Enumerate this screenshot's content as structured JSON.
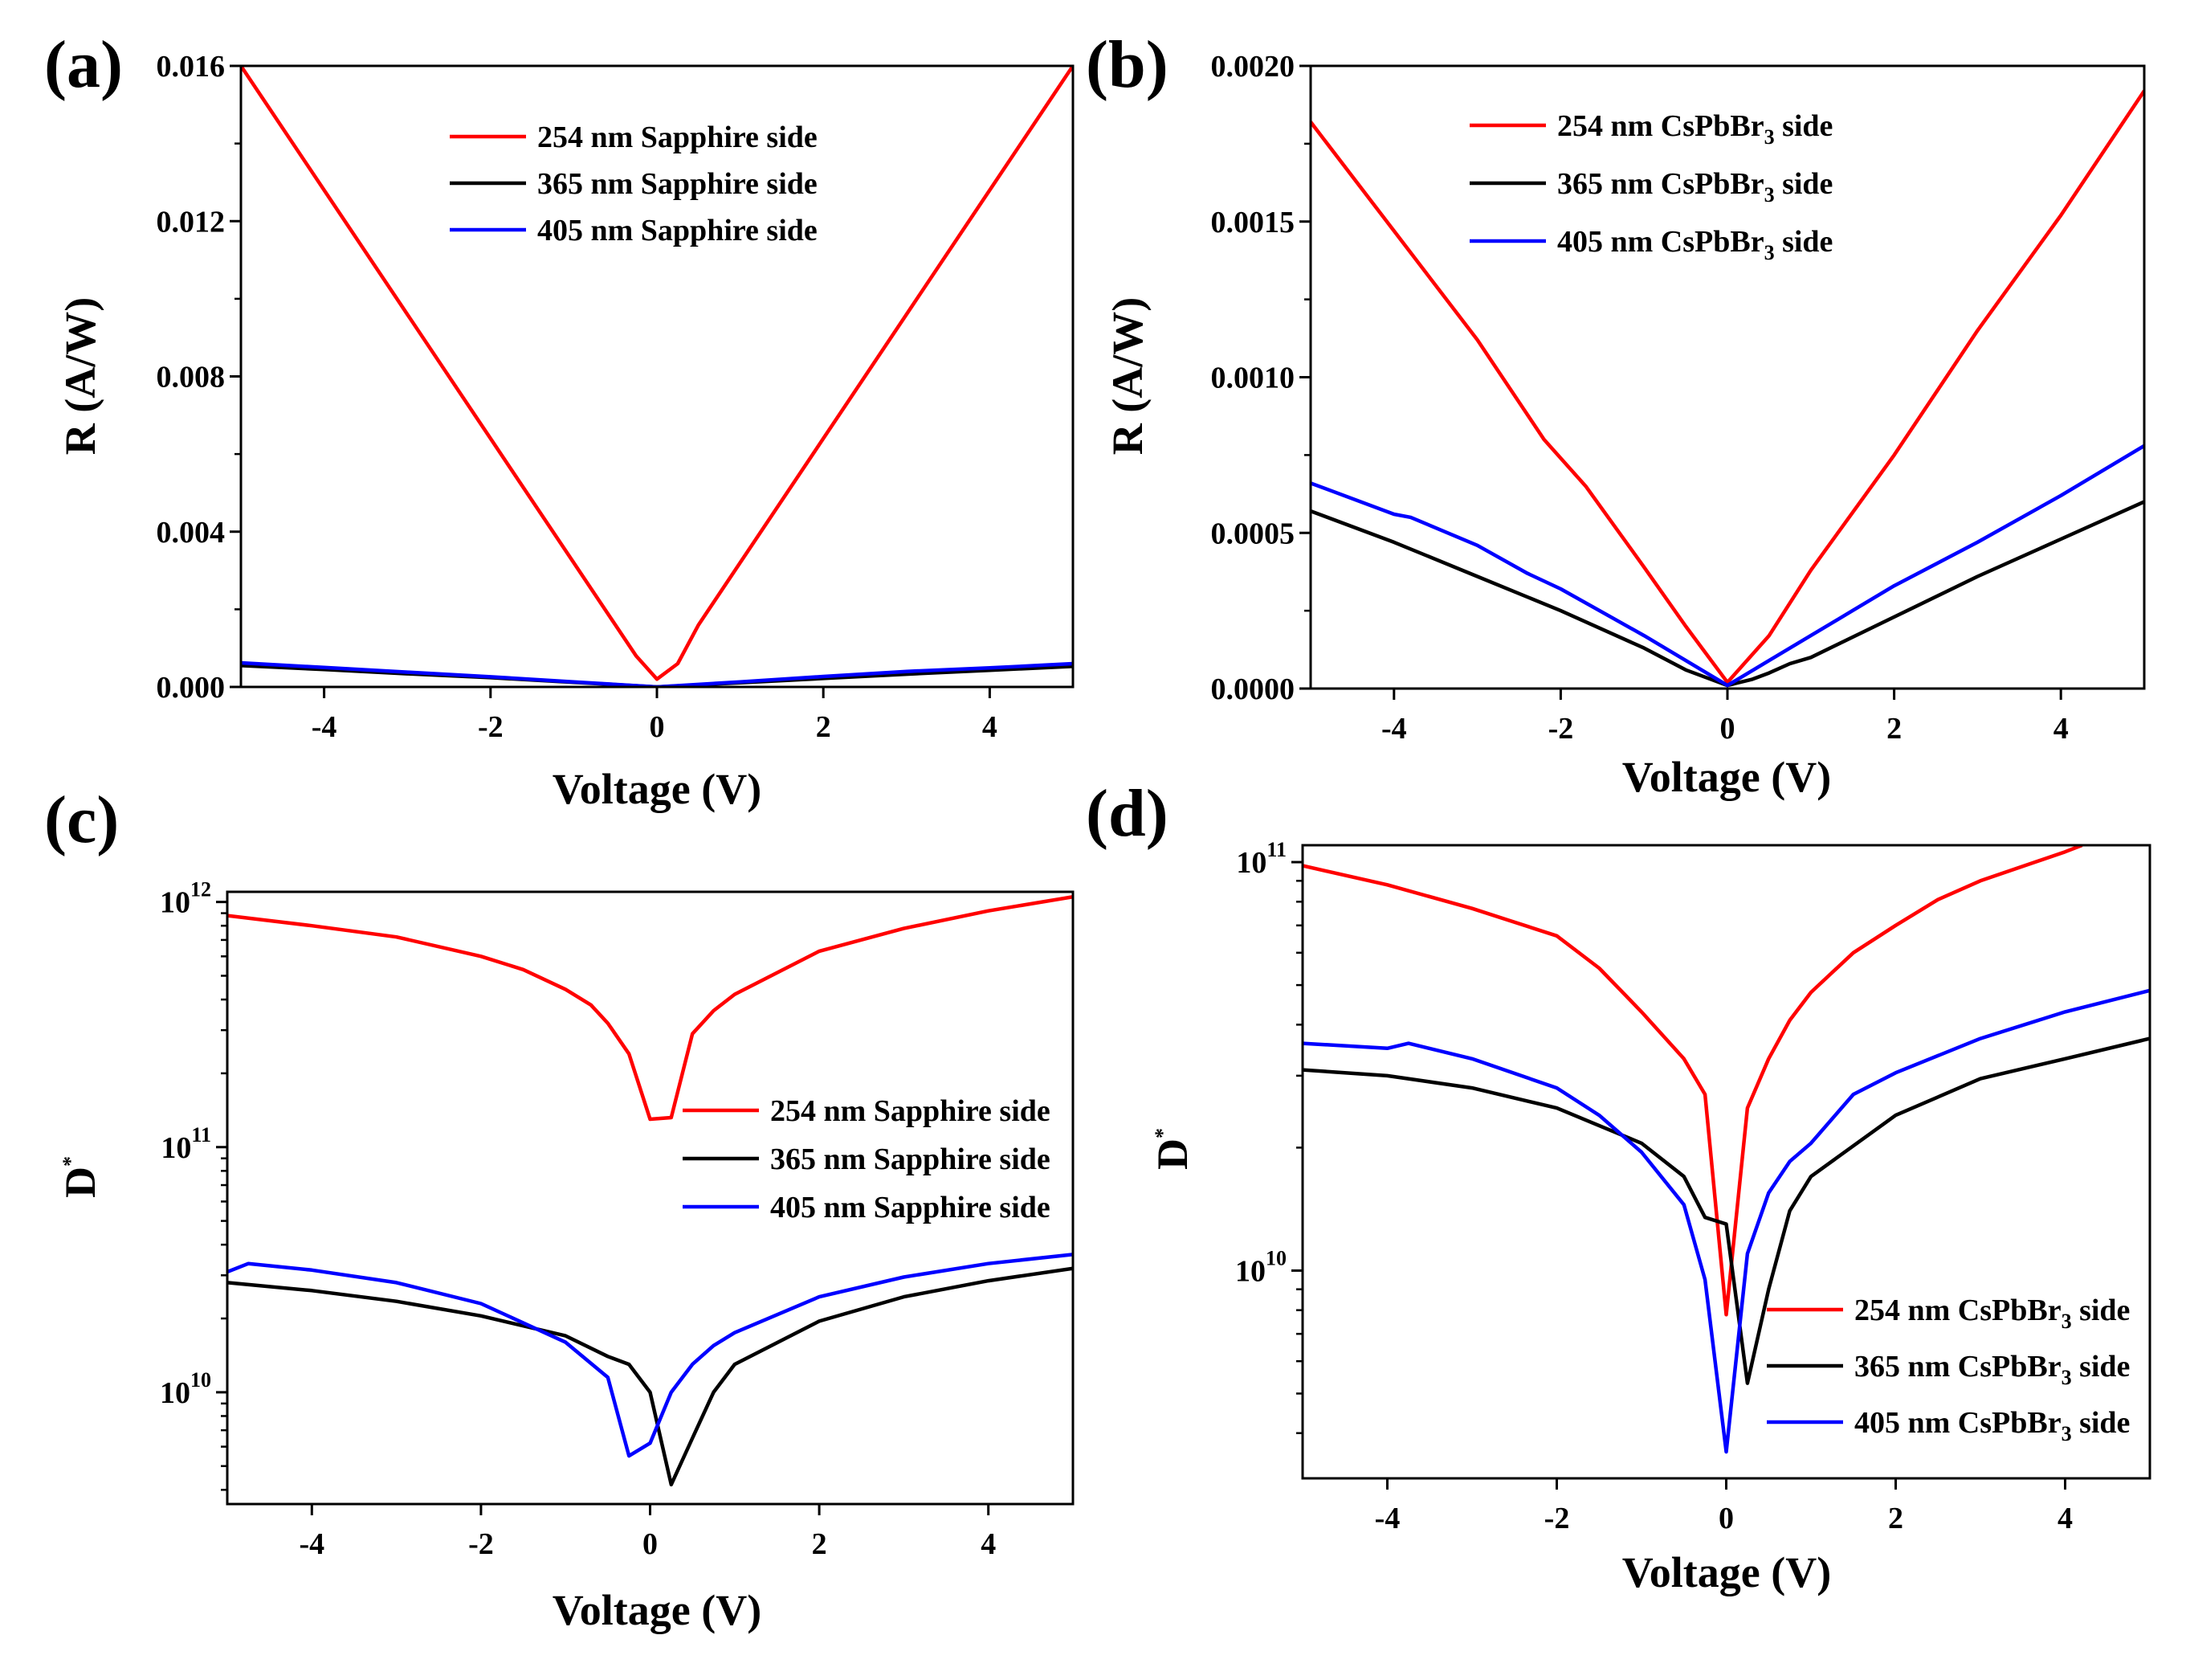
{
  "figure": {
    "panels": [
      "(a)",
      "(b)",
      "(c)",
      "(d)"
    ]
  },
  "chart_data": [
    {
      "id": "a",
      "panel_label": "(a)",
      "type": "line",
      "scale": "linear",
      "xlabel": "Voltage (V)",
      "ylabel": "R (A/W)",
      "xlim": [
        -5,
        5
      ],
      "ylim": [
        0,
        0.016
      ],
      "xticks": [
        -4,
        -2,
        0,
        2,
        4
      ],
      "xtick_labels": [
        "-4",
        "-2",
        "0",
        "2",
        "4"
      ],
      "yticks": [
        0,
        0.004,
        0.008,
        0.012,
        0.016
      ],
      "ytick_labels": [
        "0.000",
        "0.004",
        "0.008",
        "0.012",
        "0.016"
      ],
      "legend_position": "top-center",
      "series": [
        {
          "name": "254 nm Sapphire side",
          "legend": {
            "pre": "254 nm Sapphire side"
          },
          "color": "#ff0000",
          "x": [
            -5,
            -4,
            -3,
            -2,
            -1,
            -0.25,
            0,
            0.25,
            0.5,
            1,
            2,
            3,
            4,
            5
          ],
          "y": [
            0.016,
            0.0128,
            0.0096,
            0.0064,
            0.0032,
            0.0008,
            0.0002,
            0.0006,
            0.0016,
            0.0032,
            0.0064,
            0.0096,
            0.0128,
            0.016
          ]
        },
        {
          "name": "365 nm Sapphire side",
          "legend": {
            "pre": "365 nm Sapphire side"
          },
          "color": "#000000",
          "x": [
            -5,
            -4,
            -3,
            -2,
            -1,
            0,
            1,
            2,
            3,
            4,
            5
          ],
          "y": [
            0.00055,
            0.00045,
            0.00034,
            0.00024,
            0.00012,
            0.0,
            0.00011,
            0.00022,
            0.00033,
            0.00043,
            0.00053
          ]
        },
        {
          "name": "405 nm Sapphire side",
          "legend": {
            "pre": "405 nm Sapphire side"
          },
          "color": "#0000ff",
          "x": [
            -5,
            -4,
            -3,
            -2,
            -1,
            0,
            1,
            2,
            3,
            4,
            5
          ],
          "y": [
            0.00062,
            0.0005,
            0.00038,
            0.00026,
            0.00013,
            0.0,
            0.00013,
            0.00027,
            0.0004,
            0.00049,
            0.0006
          ]
        }
      ]
    },
    {
      "id": "b",
      "panel_label": "(b)",
      "type": "line",
      "scale": "linear",
      "xlabel": "Voltage (V)",
      "ylabel": "R (A/W)",
      "xlim": [
        -5,
        5
      ],
      "ylim": [
        0,
        0.002
      ],
      "xticks": [
        -4,
        -2,
        0,
        2,
        4
      ],
      "xtick_labels": [
        "-4",
        "-2",
        "0",
        "2",
        "4"
      ],
      "yticks": [
        0,
        0.0005,
        0.001,
        0.0015,
        0.002
      ],
      "ytick_labels": [
        "0.0000",
        "0.0005",
        "0.0010",
        "0.0015",
        "0.0020"
      ],
      "legend_position": "top-center",
      "series": [
        {
          "name": "254 nm CsPbBr3 side",
          "legend": {
            "pre": "254 nm CsPbBr",
            "sub": "3",
            "post": " side"
          },
          "color": "#ff0000",
          "x": [
            -5,
            -4,
            -3,
            -2.2,
            -1.7,
            -1,
            -0.5,
            0,
            0.5,
            1,
            2,
            3,
            4,
            5
          ],
          "y": [
            0.00182,
            0.00147,
            0.00112,
            0.0008,
            0.00065,
            0.00039,
            0.0002,
            2e-05,
            0.00017,
            0.00038,
            0.00075,
            0.00115,
            0.00152,
            0.00192
          ]
        },
        {
          "name": "365 nm CsPbBr3 side",
          "legend": {
            "pre": "365 nm CsPbBr",
            "sub": "3",
            "post": " side"
          },
          "color": "#000000",
          "x": [
            -5,
            -4,
            -3,
            -2,
            -1,
            -0.5,
            0,
            0.3,
            0.5,
            0.75,
            1,
            2,
            3,
            4,
            5
          ],
          "y": [
            0.00057,
            0.00047,
            0.00036,
            0.00025,
            0.00013,
            6e-05,
            1e-05,
            3e-05,
            5e-05,
            8e-05,
            0.0001,
            0.00023,
            0.00036,
            0.00048,
            0.0006
          ]
        },
        {
          "name": "405 nm CsPbBr3 side",
          "legend": {
            "pre": "405 nm CsPbBr",
            "sub": "3",
            "post": " side"
          },
          "color": "#0000ff",
          "x": [
            -5,
            -4,
            -3.8,
            -3,
            -2.4,
            -2,
            -1,
            -0.5,
            0,
            0.5,
            1,
            1.5,
            2,
            3,
            4,
            5
          ],
          "y": [
            0.00066,
            0.00056,
            0.00055,
            0.00046,
            0.00037,
            0.00032,
            0.00017,
            9e-05,
            1e-05,
            9e-05,
            0.00017,
            0.00025,
            0.00033,
            0.00047,
            0.00062,
            0.00078
          ]
        }
      ]
    },
    {
      "id": "c",
      "panel_label": "(c)",
      "type": "line",
      "scale": "log",
      "xlabel": "Voltage (V)",
      "ylabel": "D*",
      "ylabel_parts": {
        "base": "D",
        "sup": "*"
      },
      "xlim": [
        -5,
        5
      ],
      "ylim": [
        3500000000.0,
        1100000000000.0
      ],
      "xticks": [
        -4,
        -2,
        0,
        2,
        4
      ],
      "xtick_labels": [
        "-4",
        "-2",
        "0",
        "2",
        "4"
      ],
      "yticks": [
        10000000000.0,
        100000000000.0,
        1000000000000.0
      ],
      "ytick_labels": [
        {
          "base": "10",
          "exp": "10"
        },
        {
          "base": "10",
          "exp": "11"
        },
        {
          "base": "10",
          "exp": "12"
        }
      ],
      "legend_position": "center-right",
      "series": [
        {
          "name": "254 nm Sapphire side",
          "legend": {
            "pre": "254 nm Sapphire side"
          },
          "color": "#ff0000",
          "x": [
            -5,
            -4,
            -3,
            -2,
            -1.5,
            -1,
            -0.7,
            -0.5,
            -0.25,
            0,
            0.25,
            0.5,
            0.75,
            1,
            2,
            3,
            4,
            5
          ],
          "y": [
            880000000000.0,
            800000000000.0,
            720000000000.0,
            600000000000.0,
            530000000000.0,
            440000000000.0,
            380000000000.0,
            320000000000.0,
            240000000000.0,
            130000000000.0,
            132000000000.0,
            290000000000.0,
            360000000000.0,
            420000000000.0,
            630000000000.0,
            780000000000.0,
            920000000000.0,
            1050000000000.0
          ]
        },
        {
          "name": "365 nm Sapphire side",
          "legend": {
            "pre": "365 nm Sapphire side"
          },
          "color": "#000000",
          "x": [
            -5,
            -4,
            -3,
            -2,
            -1,
            -0.5,
            -0.25,
            0,
            0.25,
            0.5,
            0.75,
            1,
            2,
            3,
            4,
            5
          ],
          "y": [
            28000000000.0,
            26000000000.0,
            23500000000.0,
            20500000000.0,
            17000000000.0,
            14000000000.0,
            13000000000.0,
            10000000000.0,
            4200000000.0,
            6500000000.0,
            10000000000.0,
            13000000000.0,
            19500000000.0,
            24500000000.0,
            28500000000.0,
            32000000000.0
          ]
        },
        {
          "name": "405 nm Sapphire side",
          "legend": {
            "pre": "405 nm Sapphire side"
          },
          "color": "#0000ff",
          "x": [
            -5,
            -4.75,
            -4,
            -3,
            -2,
            -1,
            -0.5,
            -0.25,
            0,
            0.25,
            0.5,
            0.75,
            1,
            2,
            3,
            4,
            5
          ],
          "y": [
            31000000000.0,
            33500000000.0,
            31500000000.0,
            28000000000.0,
            23000000000.0,
            16000000000.0,
            11500000000.0,
            5500000000.0,
            6200000000.0,
            10000000000.0,
            13000000000.0,
            15500000000.0,
            17500000000.0,
            24500000000.0,
            29500000000.0,
            33500000000.0,
            36500000000.0
          ]
        }
      ]
    },
    {
      "id": "d",
      "panel_label": "(d)",
      "type": "line",
      "scale": "log",
      "xlabel": "Voltage (V)",
      "ylabel": "D*",
      "ylabel_parts": {
        "base": "D",
        "sup": "*"
      },
      "xlim": [
        -5,
        5
      ],
      "ylim": [
        3100000000.0,
        110000000000.0
      ],
      "xticks": [
        -4,
        -2,
        0,
        2,
        4
      ],
      "xtick_labels": [
        "-4",
        "-2",
        "0",
        "2",
        "4"
      ],
      "yticks": [
        10000000000.0,
        100000000000.0
      ],
      "ytick_labels": [
        {
          "base": "10",
          "exp": "10"
        },
        {
          "base": "10",
          "exp": "11"
        }
      ],
      "legend_position": "bottom-right",
      "series": [
        {
          "name": "254 nm CsPbBr3 side",
          "legend": {
            "pre": "254 nm CsPbBr",
            "sub": "3",
            "post": " side"
          },
          "color": "#ff0000",
          "x": [
            -5,
            -4,
            -3,
            -2,
            -1.5,
            -1,
            -0.5,
            -0.25,
            0,
            0.25,
            0.5,
            0.75,
            1,
            1.5,
            2,
            2.5,
            3,
            4,
            4.2
          ],
          "y": [
            98000000000.0,
            88000000000.0,
            77000000000.0,
            66000000000.0,
            55000000000.0,
            43000000000.0,
            33000000000.0,
            27000000000.0,
            7800000000.0,
            25000000000.0,
            33000000000.0,
            41000000000.0,
            48000000000.0,
            60000000000.0,
            70000000000.0,
            81000000000.0,
            90000000000.0,
            106000000000.0,
            110000000000.0
          ]
        },
        {
          "name": "365 nm CsPbBr3 side",
          "legend": {
            "pre": "365 nm CsPbBr",
            "sub": "3",
            "post": " side"
          },
          "color": "#000000",
          "x": [
            -5,
            -4,
            -3,
            -2,
            -1,
            -0.5,
            -0.25,
            0,
            0.25,
            0.5,
            0.75,
            1,
            2,
            3,
            4,
            5
          ],
          "y": [
            31000000000.0,
            30000000000.0,
            28000000000.0,
            25000000000.0,
            20500000000.0,
            17000000000.0,
            13500000000.0,
            13000000000.0,
            5300000000.0,
            9000000000.0,
            14000000000.0,
            17000000000.0,
            24000000000.0,
            29500000000.0,
            33000000000.0,
            37000000000.0
          ]
        },
        {
          "name": "405 nm CsPbBr3 side",
          "legend": {
            "pre": "405 nm CsPbBr",
            "sub": "3",
            "post": " side"
          },
          "color": "#0000ff",
          "x": [
            -5,
            -4,
            -3.75,
            -3,
            -2,
            -1.5,
            -1,
            -0.5,
            -0.25,
            0,
            0.25,
            0.5,
            0.75,
            1,
            1.5,
            2,
            3,
            4,
            5
          ],
          "y": [
            36000000000.0,
            35000000000.0,
            36000000000.0,
            33000000000.0,
            28000000000.0,
            24000000000.0,
            19500000000.0,
            14500000000.0,
            9500000000.0,
            3600000000.0,
            11000000000.0,
            15500000000.0,
            18500000000.0,
            20500000000.0,
            27000000000.0,
            30500000000.0,
            37000000000.0,
            43000000000.0,
            48500000000.0
          ]
        }
      ]
    }
  ]
}
